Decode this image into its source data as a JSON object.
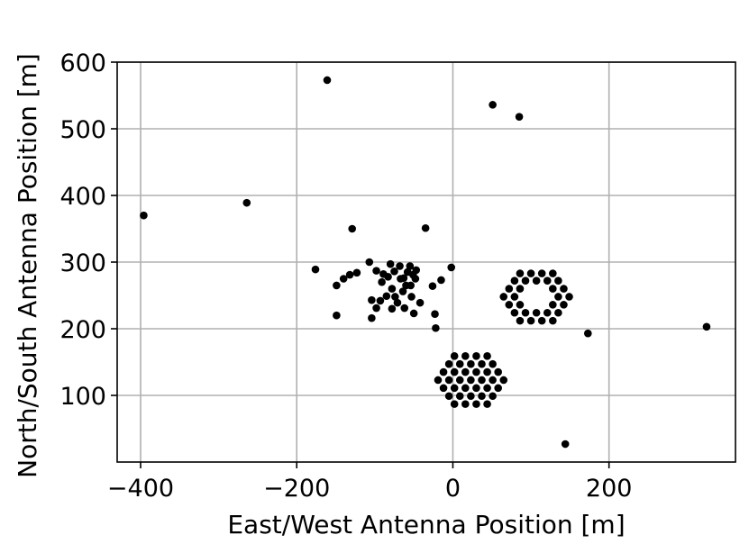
{
  "chart_data": {
    "type": "scatter",
    "xlabel": "East/West Antenna Position [m]",
    "ylabel": "North/South Antenna Position [m]",
    "xlim": [
      -430,
      362
    ],
    "ylim": [
      0,
      600
    ],
    "xticks": [
      -400,
      -200,
      0,
      200
    ],
    "xtick_labels": [
      "−400",
      "−200",
      "0",
      "200"
    ],
    "yticks": [
      100,
      200,
      300,
      400,
      500,
      600
    ],
    "ytick_labels": [
      "100",
      "200",
      "300",
      "400",
      "500",
      "600"
    ],
    "grid": true,
    "legend": "none",
    "marker_color": "#000000",
    "points": [
      [
        -396,
        370
      ],
      [
        -264,
        389
      ],
      [
        -161,
        573
      ],
      [
        -129,
        350
      ],
      [
        -176,
        289
      ],
      [
        -149,
        265
      ],
      [
        -149,
        220
      ],
      [
        -140,
        275
      ],
      [
        -132,
        281
      ],
      [
        -123,
        284
      ],
      [
        -107,
        300
      ],
      [
        -104,
        243
      ],
      [
        -104,
        216
      ],
      [
        -98,
        287
      ],
      [
        -98,
        231
      ],
      [
        -93,
        242
      ],
      [
        -91,
        270
      ],
      [
        -89,
        282
      ],
      [
        -85,
        249
      ],
      [
        -83,
        278
      ],
      [
        -80,
        297
      ],
      [
        -78,
        260
      ],
      [
        -78,
        230
      ],
      [
        -75,
        286
      ],
      [
        -74,
        248
      ],
      [
        -71,
        239
      ],
      [
        -68,
        294
      ],
      [
        -67,
        275
      ],
      [
        -64,
        256
      ],
      [
        -63,
        276
      ],
      [
        -62,
        231
      ],
      [
        -60,
        265
      ],
      [
        -58,
        285
      ],
      [
        -55,
        294
      ],
      [
        -54,
        265
      ],
      [
        -53,
        248
      ],
      [
        -51,
        281
      ],
      [
        -50,
        223
      ],
      [
        -48,
        275
      ],
      [
        -47,
        288
      ],
      [
        -42,
        239
      ],
      [
        -35,
        351
      ],
      [
        -26,
        264
      ],
      [
        -23,
        222
      ],
      [
        -22,
        201
      ],
      [
        -15,
        273
      ],
      [
        -2,
        292
      ],
      [
        51,
        536
      ],
      [
        85,
        518
      ],
      [
        173,
        193
      ],
      [
        144,
        27
      ],
      [
        325,
        203
      ],
      [
        86,
        283
      ],
      [
        100,
        283
      ],
      [
        114,
        283
      ],
      [
        128,
        283
      ],
      [
        79,
        272
      ],
      [
        93,
        272
      ],
      [
        107,
        272
      ],
      [
        121,
        272
      ],
      [
        135,
        272
      ],
      [
        72,
        260
      ],
      [
        86,
        260
      ],
      [
        128,
        260
      ],
      [
        142,
        260
      ],
      [
        65,
        248
      ],
      [
        79,
        248
      ],
      [
        135,
        248
      ],
      [
        149,
        248
      ],
      [
        72,
        236
      ],
      [
        86,
        236
      ],
      [
        128,
        236
      ],
      [
        142,
        236
      ],
      [
        79,
        224
      ],
      [
        93,
        224
      ],
      [
        107,
        224
      ],
      [
        121,
        224
      ],
      [
        135,
        224
      ],
      [
        86,
        212
      ],
      [
        100,
        212
      ],
      [
        114,
        212
      ],
      [
        128,
        212
      ],
      [
        2,
        159
      ],
      [
        16,
        159
      ],
      [
        30,
        159
      ],
      [
        44,
        159
      ],
      [
        -5,
        147
      ],
      [
        9,
        147
      ],
      [
        23,
        147
      ],
      [
        37,
        147
      ],
      [
        51,
        147
      ],
      [
        -12,
        135
      ],
      [
        2,
        135
      ],
      [
        16,
        135
      ],
      [
        30,
        135
      ],
      [
        44,
        135
      ],
      [
        58,
        135
      ],
      [
        -19,
        123
      ],
      [
        -5,
        123
      ],
      [
        9,
        123
      ],
      [
        23,
        123
      ],
      [
        37,
        123
      ],
      [
        51,
        123
      ],
      [
        65,
        123
      ],
      [
        -12,
        111
      ],
      [
        2,
        111
      ],
      [
        16,
        111
      ],
      [
        30,
        111
      ],
      [
        44,
        111
      ],
      [
        58,
        111
      ],
      [
        -5,
        99
      ],
      [
        9,
        99
      ],
      [
        23,
        99
      ],
      [
        37,
        99
      ],
      [
        51,
        99
      ],
      [
        2,
        87
      ],
      [
        16,
        87
      ],
      [
        30,
        87
      ],
      [
        44,
        87
      ]
    ]
  }
}
